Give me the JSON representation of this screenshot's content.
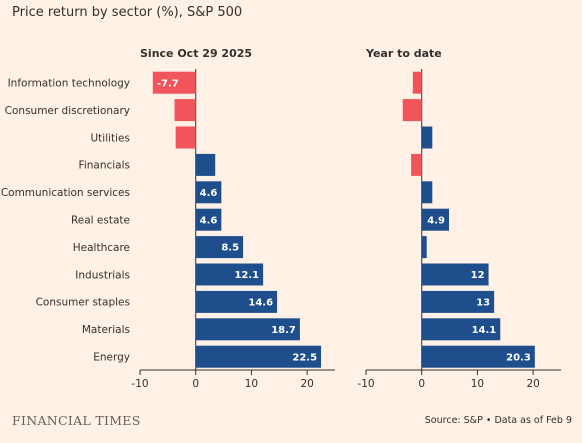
{
  "title": "Price return by sector (%), S&P 500",
  "brand": "FINANCIAL TIMES",
  "source": "Source: S&P • Data as of Feb 9",
  "colors": {
    "background": "#fff1e5",
    "positive": "#1f4e8c",
    "negative": "#f2545b",
    "axis": "#33302e",
    "grid": "#d9ccc1"
  },
  "chart_data": [
    {
      "type": "bar",
      "orientation": "horizontal",
      "title": "Since Oct 29 2025",
      "categories": [
        "Information technology",
        "Consumer discretionary",
        "Utilities",
        "Financials",
        "Communication services",
        "Real estate",
        "Healthcare",
        "Industrials",
        "Consumer staples",
        "Materials",
        "Energy"
      ],
      "values": [
        -7.7,
        -3.8,
        -3.6,
        3.5,
        4.6,
        4.6,
        8.5,
        12.1,
        14.6,
        18.7,
        22.5
      ],
      "labels": [
        "-7.7",
        "",
        "",
        "",
        "4.6",
        "4.6",
        "8.5",
        "12.1",
        "14.6",
        "18.7",
        "22.5"
      ],
      "xlim": [
        -10,
        25
      ],
      "xticks": [
        -10,
        0,
        10,
        20
      ],
      "grid": false
    },
    {
      "type": "bar",
      "orientation": "horizontal",
      "title": "Year to date",
      "categories": [
        "Information technology",
        "Consumer discretionary",
        "Utilities",
        "Financials",
        "Communication services",
        "Real estate",
        "Healthcare",
        "Industrials",
        "Consumer staples",
        "Materials",
        "Energy"
      ],
      "values": [
        -1.6,
        -3.4,
        1.9,
        -1.9,
        1.9,
        4.9,
        0.9,
        12.0,
        13.0,
        14.1,
        20.3
      ],
      "labels": [
        "",
        "",
        "",
        "",
        "",
        "4.9",
        "",
        "12",
        "13",
        "14.1",
        "20.3"
      ],
      "xlim": [
        -10,
        25
      ],
      "xticks": [
        -10,
        0,
        10,
        20
      ],
      "grid": false
    }
  ]
}
